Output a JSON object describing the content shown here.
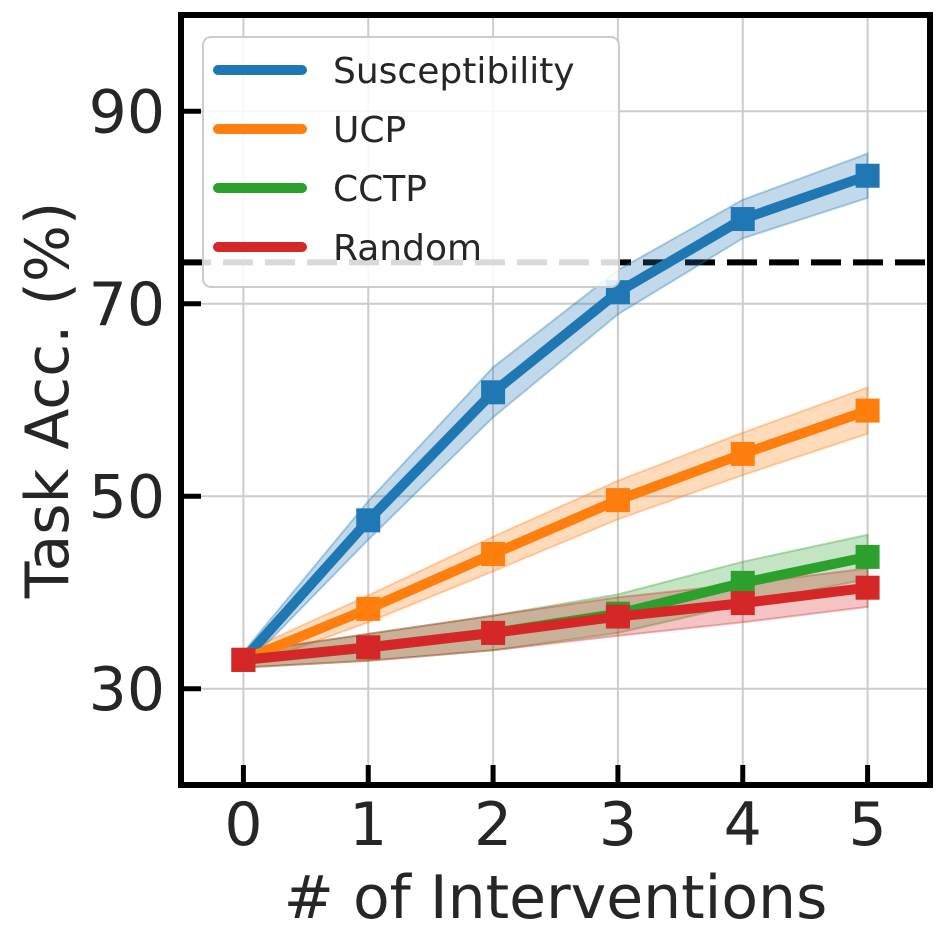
{
  "chart_data": {
    "type": "line",
    "xlabel": "# of Interventions",
    "ylabel": "Task Acc. (%)",
    "x": [
      0,
      1,
      2,
      3,
      4,
      5
    ],
    "xticks": [
      "0",
      "1",
      "2",
      "3",
      "4",
      "5"
    ],
    "yticks": [
      "30",
      "50",
      "70",
      "90"
    ],
    "xlim": [
      -0.5,
      5.5
    ],
    "ylim": [
      20,
      100
    ],
    "grid": true,
    "legend_position": "top-left",
    "reference_line": {
      "y": 74.3,
      "style": "dashed",
      "color": "#000000"
    },
    "series": [
      {
        "name": "Susceptibility",
        "color": "#1f77b4",
        "values": [
          33.0,
          47.5,
          60.8,
          71.2,
          78.8,
          83.3
        ],
        "band": [
          0.8,
          2.0,
          2.6,
          2.3,
          2.0,
          2.3
        ]
      },
      {
        "name": "UCP",
        "color": "#ff7f0e",
        "values": [
          33.0,
          38.3,
          44.0,
          49.6,
          54.4,
          58.9
        ],
        "band": [
          0.8,
          1.4,
          1.8,
          2.0,
          2.2,
          2.4
        ]
      },
      {
        "name": "CCTP",
        "color": "#2ca02c",
        "values": [
          33.0,
          34.3,
          35.8,
          37.8,
          41.0,
          43.7
        ],
        "band": [
          0.8,
          1.4,
          1.8,
          2.0,
          2.2,
          2.3
        ]
      },
      {
        "name": "Random",
        "color": "#d62728",
        "values": [
          33.0,
          34.3,
          35.8,
          37.5,
          38.9,
          40.5
        ],
        "band": [
          0.8,
          1.4,
          1.8,
          2.0,
          2.0,
          2.0
        ]
      }
    ]
  }
}
